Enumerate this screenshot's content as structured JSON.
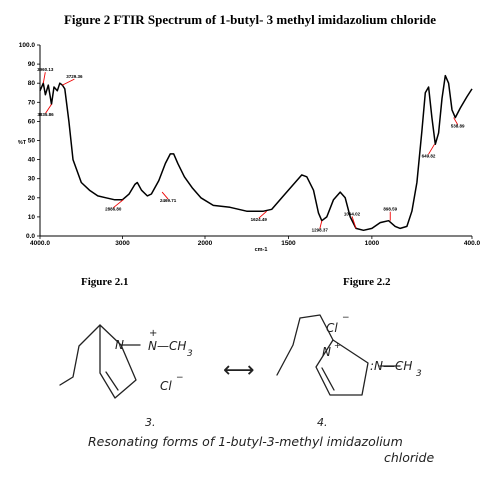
{
  "title": "Figure 2   FTIR Spectrum of 1-butyl- 3 methyl imidazolium chloride",
  "figure_21_label": "Figure 2.1",
  "figure_22_label": "Figure 2.2",
  "chart_data": {
    "type": "line",
    "ylabel": "%T",
    "xlabel": "cm-1",
    "x_tick_labels": [
      "4000.0",
      "3000",
      "2000",
      "1500",
      "1000",
      "400.0"
    ],
    "y_tick_labels": [
      "0.0",
      "10",
      "20",
      "30",
      "40",
      "50",
      "60",
      "70",
      "80",
      "90",
      "100.0"
    ],
    "x_ticks": [
      4000,
      3000,
      2000,
      1500,
      1000,
      400
    ],
    "y_ticks": [
      0,
      10,
      20,
      30,
      40,
      50,
      60,
      70,
      80,
      90,
      100
    ],
    "xlim": [
      4000,
      400
    ],
    "ylim": [
      0,
      100
    ],
    "series": [
      {
        "values": [
          [
            4000,
            76
          ],
          [
            3960,
            80
          ],
          [
            3935,
            74
          ],
          [
            3900,
            79
          ],
          [
            3860,
            69
          ],
          [
            3830,
            78
          ],
          [
            3790,
            76
          ],
          [
            3760,
            80
          ],
          [
            3729,
            79
          ],
          [
            3700,
            77
          ],
          [
            3650,
            60
          ],
          [
            3600,
            40
          ],
          [
            3500,
            28
          ],
          [
            3400,
            24
          ],
          [
            3300,
            21
          ],
          [
            3200,
            20
          ],
          [
            3100,
            19
          ],
          [
            3000,
            19
          ],
          [
            2920,
            22
          ],
          [
            2850,
            27
          ],
          [
            2820,
            28
          ],
          [
            2770,
            24
          ],
          [
            2700,
            21
          ],
          [
            2650,
            22
          ],
          [
            2560,
            29
          ],
          [
            2480,
            38
          ],
          [
            2420,
            43
          ],
          [
            2380,
            43
          ],
          [
            2330,
            38
          ],
          [
            2250,
            31
          ],
          [
            2150,
            25
          ],
          [
            2050,
            20
          ],
          [
            1950,
            16
          ],
          [
            1850,
            15
          ],
          [
            1750,
            13
          ],
          [
            1650,
            13
          ],
          [
            1600,
            14
          ],
          [
            1530,
            21
          ],
          [
            1460,
            28
          ],
          [
            1420,
            32
          ],
          [
            1390,
            31
          ],
          [
            1350,
            24
          ],
          [
            1320,
            12
          ],
          [
            1300,
            8
          ],
          [
            1270,
            10
          ],
          [
            1230,
            19
          ],
          [
            1190,
            23
          ],
          [
            1160,
            20
          ],
          [
            1130,
            10
          ],
          [
            1095,
            4
          ],
          [
            1050,
            3
          ],
          [
            1000,
            4
          ],
          [
            950,
            7
          ],
          [
            900,
            8
          ],
          [
            860,
            5
          ],
          [
            830,
            4
          ],
          [
            790,
            5
          ],
          [
            760,
            13
          ],
          [
            730,
            28
          ],
          [
            700,
            55
          ],
          [
            680,
            75
          ],
          [
            660,
            78
          ],
          [
            640,
            62
          ],
          [
            620,
            48
          ],
          [
            600,
            54
          ],
          [
            580,
            72
          ],
          [
            560,
            84
          ],
          [
            540,
            80
          ],
          [
            520,
            66
          ],
          [
            500,
            62
          ],
          [
            470,
            67
          ],
          [
            430,
            73
          ],
          [
            400,
            77
          ]
        ]
      }
    ],
    "annotations": [
      {
        "text": "3960.13",
        "x": 3960,
        "y": 80
      },
      {
        "text": "3729.36",
        "x": 3729,
        "y": 79
      },
      {
        "text": "3835.86",
        "x": 3860,
        "y": 69
      },
      {
        "text": "2886.80",
        "x": 2990,
        "y": 19
      },
      {
        "text": "2469.71",
        "x": 2520,
        "y": 23
      },
      {
        "text": "1624.49",
        "x": 1630,
        "y": 13
      },
      {
        "text": "1298.37",
        "x": 1300,
        "y": 8
      },
      {
        "text": "1094.02",
        "x": 1095,
        "y": 4
      },
      {
        "text": "898.59",
        "x": 890,
        "y": 8
      },
      {
        "text": "649.82",
        "x": 625,
        "y": 48
      },
      {
        "text": "538.89",
        "x": 510,
        "y": 62
      }
    ],
    "grid": false
  },
  "structures": {
    "left_number": "3.",
    "right_number": "4.",
    "plus": "+",
    "methyl_left": "N—CH",
    "methyl_right": ":N—CH",
    "subscript": "3",
    "n_left": "N",
    "n_right": "N",
    "chloride_left": "Cl",
    "chloride_right": "Cl",
    "minus": "−",
    "arrow": "⟷",
    "caption_line1": "Resonating forms of 1-butyl-3-methyl imidazolium",
    "caption_line2": "chloride"
  }
}
